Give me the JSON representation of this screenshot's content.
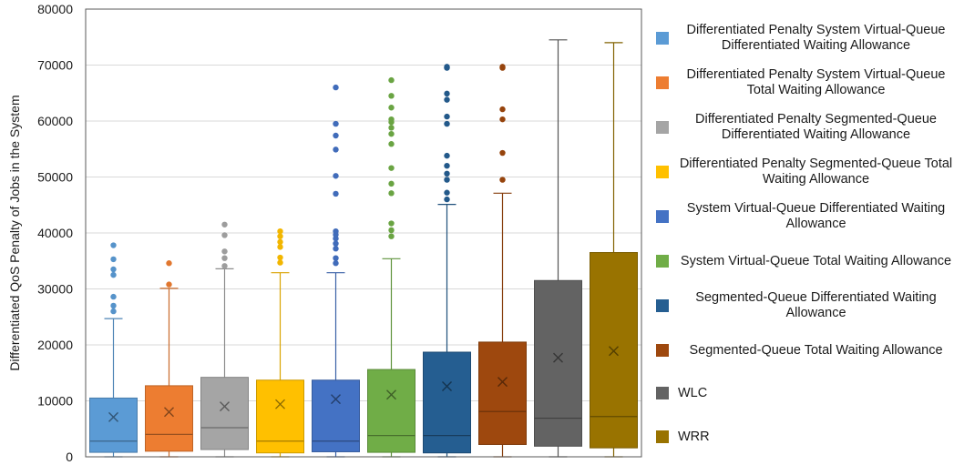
{
  "chart_data": {
    "type": "box",
    "ylabel": "Differentiated QoS Penalty of Jobs in the System",
    "xlabel": "",
    "ylim": [
      0,
      80000
    ],
    "yticks": [
      0,
      10000,
      20000,
      30000,
      40000,
      50000,
      60000,
      70000,
      80000
    ],
    "ytick_labels": [
      "0",
      "10000",
      "20000",
      "30000",
      "40000",
      "50000",
      "60000",
      "70000",
      "80000"
    ],
    "grid": true,
    "legend_position": "right",
    "series": [
      {
        "name": "Differentiated Penalty System Virtual-Queue Differentiated Waiting Allowance",
        "color": "#5B9BD5",
        "min": 0,
        "q1": 800,
        "median": 2800,
        "q3": 10500,
        "max": 24700,
        "mean": 7100,
        "outliers": [
          26000,
          27000,
          28600,
          32500,
          33500,
          35300,
          37800
        ]
      },
      {
        "name": "Differentiated Penalty System Virtual-Queue Total Waiting Allowance",
        "color": "#ED7D31",
        "min": 0,
        "q1": 1000,
        "median": 4000,
        "q3": 12700,
        "max": 30100,
        "mean": 8000,
        "outliers": [
          30800,
          34600
        ]
      },
      {
        "name": "Differentiated Penalty Segmented-Queue Differentiated Waiting Allowance",
        "color": "#A5A5A5",
        "min": 0,
        "q1": 1300,
        "median": 5200,
        "q3": 14200,
        "max": 33600,
        "mean": 9000,
        "outliers": [
          34100,
          35500,
          36700,
          39600,
          41500
        ]
      },
      {
        "name": "Differentiated Penalty Segmented-Queue Total Waiting Allowance",
        "color": "#FFC000",
        "min": 0,
        "q1": 700,
        "median": 2800,
        "q3": 13700,
        "max": 32900,
        "mean": 9400,
        "outliers": [
          34700,
          35600,
          37500,
          38400,
          39400,
          40300
        ]
      },
      {
        "name": "System Virtual-Queue Differentiated Waiting Allowance",
        "color": "#4472C4",
        "min": 0,
        "q1": 900,
        "median": 2800,
        "q3": 13700,
        "max": 32900,
        "mean": 10300,
        "outliers": [
          34600,
          35500,
          37200,
          38100,
          39000,
          39700,
          40300,
          47000,
          50200,
          54900,
          57400,
          59500,
          66000
        ]
      },
      {
        "name": "System Virtual-Queue Total Waiting Allowance",
        "color": "#70AD47",
        "min": 0,
        "q1": 800,
        "median": 3800,
        "q3": 15600,
        "max": 35400,
        "mean": 11100,
        "outliers": [
          39400,
          40500,
          41700,
          47100,
          48800,
          51600,
          55900,
          57700,
          58800,
          59800,
          60300,
          62400,
          64500,
          67300
        ]
      },
      {
        "name": "Segmented-Queue Differentiated Waiting Allowance",
        "color": "#255E91",
        "min": 0,
        "q1": 700,
        "median": 3800,
        "q3": 18700,
        "max": 45100,
        "mean": 12600,
        "outliers": [
          46000,
          47200,
          49500,
          50600,
          52000,
          53800,
          59500,
          60800,
          63800,
          64900,
          69500,
          69700
        ]
      },
      {
        "name": "Segmented-Queue Total Waiting Allowance",
        "color": "#9E480E",
        "min": 0,
        "q1": 2200,
        "median": 8100,
        "q3": 20500,
        "max": 47100,
        "mean": 13400,
        "outliers": [
          49500,
          54300,
          60300,
          62100,
          69500,
          69700
        ]
      },
      {
        "name": "WLC",
        "color": "#636363",
        "min": 0,
        "q1": 1900,
        "median": 6900,
        "q3": 31500,
        "max": 74500,
        "mean": 17700,
        "outliers": []
      },
      {
        "name": "WRR",
        "color": "#997300",
        "min": 0,
        "q1": 1600,
        "median": 7200,
        "q3": 36500,
        "max": 74000,
        "mean": 18900,
        "outliers": []
      }
    ]
  },
  "legend": {
    "items": [
      {
        "label": "Differentiated Penalty System Virtual-Queue Differentiated Waiting Allowance",
        "color": "#5B9BD5"
      },
      {
        "label": "Differentiated Penalty System Virtual-Queue Total Waiting Allowance",
        "color": "#ED7D31"
      },
      {
        "label": "Differentiated Penalty Segmented-Queue Differentiated Waiting Allowance",
        "color": "#A5A5A5"
      },
      {
        "label": "Differentiated Penalty Segmented-Queue Total Waiting Allowance",
        "color": "#FFC000"
      },
      {
        "label": "System Virtual-Queue Differentiated Waiting Allowance",
        "color": "#4472C4"
      },
      {
        "label": "System Virtual-Queue Total Waiting Allowance",
        "color": "#70AD47"
      },
      {
        "label": "Segmented-Queue Differentiated Waiting Allowance",
        "color": "#255E91"
      },
      {
        "label": "Segmented-Queue Total Waiting Allowance",
        "color": "#9E480E"
      },
      {
        "label": "WLC",
        "color": "#636363"
      },
      {
        "label": "WRR",
        "color": "#997300"
      }
    ]
  }
}
